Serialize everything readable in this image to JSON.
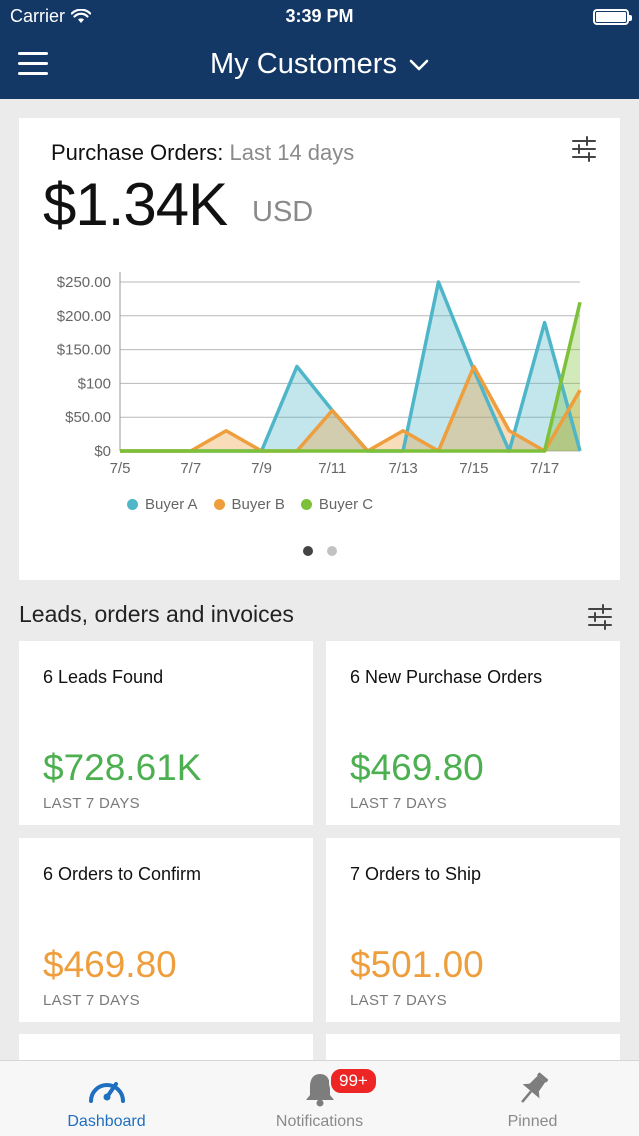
{
  "status_bar": {
    "carrier": "Carrier",
    "time": "3:39 PM"
  },
  "header": {
    "title": "My Customers"
  },
  "purchase_orders": {
    "label": "Purchase Orders:",
    "period": "Last 14 days",
    "amount": "$1.34K",
    "currency": "USD"
  },
  "chart_data": {
    "type": "area",
    "ylim": [
      0,
      250
    ],
    "y_ticks": [
      {
        "value": 250,
        "label": "$250.00"
      },
      {
        "value": 200,
        "label": "$200.00"
      },
      {
        "value": 150,
        "label": "$150.00"
      },
      {
        "value": 100,
        "label": "$100"
      },
      {
        "value": 50,
        "label": "$50.00"
      },
      {
        "value": 0,
        "label": "$0"
      }
    ],
    "x_ticks": [
      {
        "x": 5,
        "label": "7/5"
      },
      {
        "x": 7,
        "label": "7/7"
      },
      {
        "x": 9,
        "label": "7/9"
      },
      {
        "x": 11,
        "label": "7/11"
      },
      {
        "x": 13,
        "label": "7/13"
      },
      {
        "x": 15,
        "label": "7/15"
      },
      {
        "x": 17,
        "label": "7/17"
      }
    ],
    "xlim": [
      5,
      18
    ],
    "series": [
      {
        "name": "Buyer A",
        "color": "#4fb6c9",
        "points": [
          [
            5,
            0
          ],
          [
            6,
            0
          ],
          [
            7,
            0
          ],
          [
            8,
            0
          ],
          [
            9,
            0
          ],
          [
            10,
            125
          ],
          [
            11,
            60
          ],
          [
            12,
            0
          ],
          [
            13,
            0
          ],
          [
            14,
            250
          ],
          [
            15,
            120
          ],
          [
            16,
            0
          ],
          [
            17,
            190
          ],
          [
            18,
            0
          ]
        ]
      },
      {
        "name": "Buyer B",
        "color": "#ee9e3c",
        "points": [
          [
            5,
            0
          ],
          [
            6,
            0
          ],
          [
            7,
            0
          ],
          [
            8,
            30
          ],
          [
            9,
            0
          ],
          [
            10,
            0
          ],
          [
            11,
            60
          ],
          [
            12,
            0
          ],
          [
            13,
            30
          ],
          [
            14,
            0
          ],
          [
            15,
            125
          ],
          [
            16,
            30
          ],
          [
            17,
            0
          ],
          [
            18,
            90
          ]
        ]
      },
      {
        "name": "Buyer C",
        "color": "#7dc13a",
        "points": [
          [
            5,
            0
          ],
          [
            6,
            0
          ],
          [
            7,
            0
          ],
          [
            8,
            0
          ],
          [
            9,
            0
          ],
          [
            10,
            0
          ],
          [
            11,
            0
          ],
          [
            12,
            0
          ],
          [
            13,
            0
          ],
          [
            14,
            0
          ],
          [
            15,
            0
          ],
          [
            16,
            0
          ],
          [
            17,
            0
          ],
          [
            18,
            220
          ]
        ]
      }
    ]
  },
  "section": {
    "title": "Leads, orders and invoices"
  },
  "tiles": [
    {
      "title": "6 Leads Found",
      "amount": "$728.61K",
      "period": "LAST 7 DAYS",
      "color": "#4caf50"
    },
    {
      "title": "6 New Purchase Orders",
      "amount": "$469.80",
      "period": "LAST 7 DAYS",
      "color": "#4caf50"
    },
    {
      "title": "6 Orders to Confirm",
      "amount": "$469.80",
      "period": "LAST 7 DAYS",
      "color": "#ee9e3c"
    },
    {
      "title": "7 Orders to Ship",
      "amount": "$501.00",
      "period": "LAST 7 DAYS",
      "color": "#ee9e3c"
    }
  ],
  "tabbar": {
    "tabs": [
      {
        "label": "Dashboard",
        "icon": "gauge-icon"
      },
      {
        "label": "Notifications",
        "icon": "bell-icon",
        "badge": "99+"
      },
      {
        "label": "Pinned",
        "icon": "pin-icon"
      }
    ]
  }
}
